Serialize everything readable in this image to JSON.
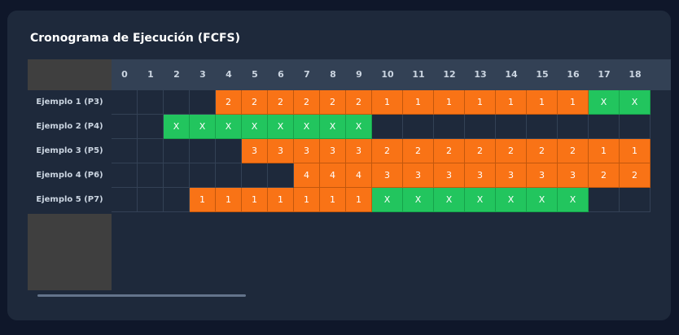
{
  "title": "Cronograma de Ejecución (FCFS)",
  "columns": [
    "0",
    "1",
    "2",
    "3",
    "4",
    "5",
    "6",
    "7",
    "8",
    "9",
    "10",
    "11",
    "12",
    "13",
    "14",
    "15",
    "16",
    "17",
    "18"
  ],
  "rows": [
    {
      "label": "Ejemplo 1 (P3)",
      "cells": [
        "",
        "",
        "",
        "",
        "2",
        "2",
        "2",
        "2",
        "2",
        "2",
        "1",
        "1",
        "1",
        "1",
        "1",
        "1",
        "1",
        "X",
        "X"
      ]
    },
    {
      "label": "Ejemplo 2 (P4)",
      "cells": [
        "",
        "",
        "X",
        "X",
        "X",
        "X",
        "X",
        "X",
        "X",
        "X",
        "",
        "",
        "",
        "",
        "",
        "",
        "",
        "",
        ""
      ]
    },
    {
      "label": "Ejemplo 3 (P5)",
      "cells": [
        "",
        "",
        "",
        "",
        "",
        "3",
        "3",
        "3",
        "3",
        "3",
        "2",
        "2",
        "2",
        "2",
        "2",
        "2",
        "2",
        "1",
        "1"
      ]
    },
    {
      "label": "Ejemplo 4 (P6)",
      "cells": [
        "",
        "",
        "",
        "",
        "",
        "",
        "",
        "4",
        "4",
        "4",
        "3",
        "3",
        "3",
        "3",
        "3",
        "3",
        "3",
        "2",
        "2"
      ]
    },
    {
      "label": "Ejemplo 5 (P7)",
      "cells": [
        "",
        "",
        "",
        "1",
        "1",
        "1",
        "1",
        "1",
        "1",
        "1",
        "X",
        "X",
        "X",
        "X",
        "X",
        "X",
        "X",
        "",
        ""
      ]
    }
  ],
  "colors": {
    "progress": "#f97316",
    "done": "#22c55e",
    "empty": "#1e293b"
  }
}
